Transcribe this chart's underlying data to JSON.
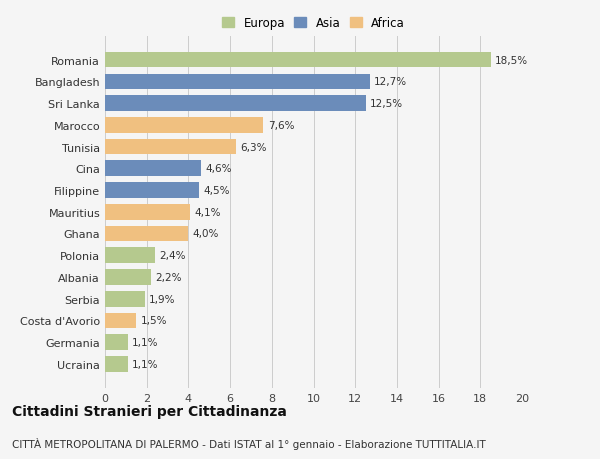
{
  "categories": [
    "Romania",
    "Bangladesh",
    "Sri Lanka",
    "Marocco",
    "Tunisia",
    "Cina",
    "Filippine",
    "Mauritius",
    "Ghana",
    "Polonia",
    "Albania",
    "Serbia",
    "Costa d'Avorio",
    "Germania",
    "Ucraina"
  ],
  "values": [
    18.5,
    12.7,
    12.5,
    7.6,
    6.3,
    4.6,
    4.5,
    4.1,
    4.0,
    2.4,
    2.2,
    1.9,
    1.5,
    1.1,
    1.1
  ],
  "labels": [
    "18,5%",
    "12,7%",
    "12,5%",
    "7,6%",
    "6,3%",
    "4,6%",
    "4,5%",
    "4,1%",
    "4,0%",
    "2,4%",
    "2,2%",
    "1,9%",
    "1,5%",
    "1,1%",
    "1,1%"
  ],
  "continent": [
    "Europa",
    "Asia",
    "Asia",
    "Africa",
    "Africa",
    "Asia",
    "Asia",
    "Africa",
    "Africa",
    "Europa",
    "Europa",
    "Europa",
    "Africa",
    "Europa",
    "Europa"
  ],
  "colors": {
    "Europa": "#b5c98e",
    "Asia": "#6b8cba",
    "Africa": "#f0c080"
  },
  "title": "Cittadini Stranieri per Cittadinanza",
  "subtitle": "CITTÀ METROPOLITANA DI PALERMO - Dati ISTAT al 1° gennaio - Elaborazione TUTTITALIA.IT",
  "xlim": [
    0,
    20
  ],
  "xticks": [
    0,
    2,
    4,
    6,
    8,
    10,
    12,
    14,
    16,
    18,
    20
  ],
  "bg_color": "#f5f5f5",
  "grid_color": "#cccccc",
  "bar_height": 0.72,
  "title_fontsize": 10,
  "subtitle_fontsize": 7.5,
  "tick_fontsize": 8,
  "label_fontsize": 7.5
}
